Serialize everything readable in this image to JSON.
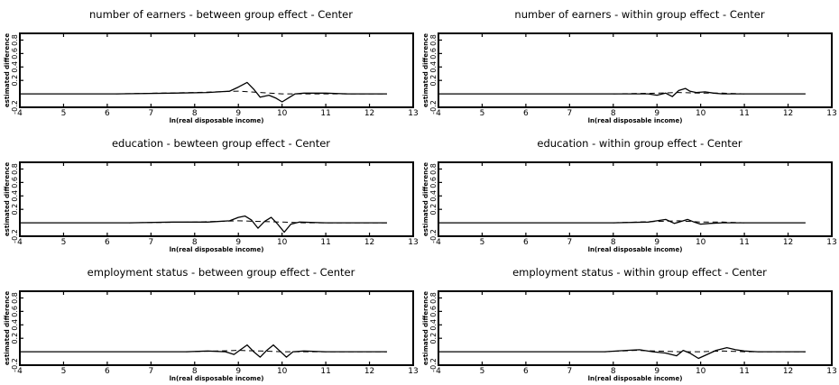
{
  "chart_data": [
    {
      "type": "line",
      "title": "number of earners - between group effect - Center",
      "xlabel": "ln(real disposable income)",
      "ylabel": "estimated difference",
      "xlim": [
        4,
        13
      ],
      "ylim": [
        -0.2,
        0.9
      ],
      "xticks": [
        "4",
        "5",
        "6",
        "7",
        "8",
        "9",
        "10",
        "11",
        "12",
        "13"
      ],
      "yticks": [
        "-0.2",
        "0.2",
        "0.4",
        "0.6",
        "0.8"
      ],
      "series": [
        {
          "style": "solid",
          "x": [
            4.0,
            6.2,
            7.5,
            8.3,
            8.8,
            9.0,
            9.2,
            9.35,
            9.5,
            9.7,
            9.85,
            10.0,
            10.15,
            10.3,
            10.5,
            11.0,
            11.5,
            12.0,
            12.4
          ],
          "y": [
            0.0,
            0.0,
            0.01,
            0.02,
            0.04,
            0.1,
            0.17,
            0.07,
            -0.05,
            -0.02,
            -0.06,
            -0.12,
            -0.06,
            0.0,
            0.01,
            0.01,
            0.0,
            0.0,
            0.0
          ]
        },
        {
          "style": "dashed",
          "x": [
            6.2,
            8.0,
            9.0,
            9.5,
            10.0,
            10.5,
            11.0,
            12.4
          ],
          "y": [
            0.0,
            0.02,
            0.04,
            0.02,
            0.0,
            0.0,
            0.0,
            0.0
          ]
        }
      ]
    },
    {
      "type": "line",
      "title": "number of earners - within group effect - Center",
      "xlabel": "ln(real disposable income)",
      "ylabel": "estimated difference",
      "xlim": [
        4,
        13
      ],
      "ylim": [
        -0.2,
        0.9
      ],
      "xticks": [
        "4",
        "5",
        "6",
        "7",
        "8",
        "9",
        "10",
        "11",
        "12",
        "13"
      ],
      "yticks": [
        "-0.2",
        "0.2",
        "0.4",
        "0.6",
        "0.8"
      ],
      "series": [
        {
          "style": "solid",
          "x": [
            4.0,
            8.0,
            8.8,
            9.0,
            9.2,
            9.35,
            9.5,
            9.65,
            9.75,
            9.9,
            10.1,
            10.3,
            10.5,
            11.0,
            12.4
          ],
          "y": [
            0.0,
            0.0,
            0.0,
            -0.02,
            0.01,
            -0.04,
            0.05,
            0.08,
            0.04,
            0.02,
            0.03,
            0.01,
            0.0,
            0.0,
            0.0
          ]
        },
        {
          "style": "dashed",
          "x": [
            8.0,
            9.0,
            9.5,
            10.0,
            10.5,
            11.0
          ],
          "y": [
            0.0,
            0.01,
            0.02,
            0.01,
            0.01,
            0.0
          ]
        }
      ]
    },
    {
      "type": "line",
      "title": "education - bewteen group effect - Center",
      "xlabel": "ln(real disposable income)",
      "ylabel": "estimated difference",
      "xlim": [
        4,
        13
      ],
      "ylim": [
        -0.2,
        0.9
      ],
      "xticks": [
        "4",
        "5",
        "6",
        "7",
        "8",
        "9",
        "10",
        "11",
        "12",
        "13"
      ],
      "yticks": [
        "-0.2",
        "0.2",
        "0.4",
        "0.6",
        "0.8"
      ],
      "series": [
        {
          "style": "solid",
          "x": [
            4.0,
            6.5,
            7.5,
            8.3,
            8.8,
            9.0,
            9.15,
            9.3,
            9.45,
            9.6,
            9.75,
            9.9,
            10.05,
            10.2,
            10.4,
            11.0,
            12.4
          ],
          "y": [
            0.0,
            0.0,
            0.01,
            0.01,
            0.03,
            0.08,
            0.1,
            0.04,
            -0.08,
            0.02,
            0.08,
            -0.02,
            -0.14,
            -0.02,
            0.01,
            0.0,
            0.0
          ]
        },
        {
          "style": "dashed",
          "x": [
            6.5,
            8.0,
            9.0,
            9.5,
            10.0,
            10.5,
            11.0,
            12.4
          ],
          "y": [
            0.0,
            0.01,
            0.03,
            0.02,
            0.01,
            0.0,
            0.0,
            0.0
          ]
        }
      ]
    },
    {
      "type": "line",
      "title": "education - within group effect - Center",
      "xlabel": "ln(real disposable income)",
      "ylabel": "estimated difference",
      "xlim": [
        4,
        13
      ],
      "ylim": [
        -0.2,
        0.9
      ],
      "xticks": [
        "4",
        "5",
        "6",
        "7",
        "8",
        "9",
        "10",
        "11",
        "12",
        "13"
      ],
      "yticks": [
        "-0.2",
        "0.2",
        "0.4",
        "0.6",
        "0.8"
      ],
      "series": [
        {
          "style": "solid",
          "x": [
            4.0,
            8.0,
            8.8,
            9.0,
            9.2,
            9.4,
            9.55,
            9.7,
            9.85,
            10.0,
            10.2,
            10.5,
            11.0,
            12.4
          ],
          "y": [
            0.0,
            0.0,
            0.01,
            0.03,
            0.05,
            -0.01,
            0.02,
            0.05,
            0.01,
            -0.02,
            -0.01,
            0.0,
            0.0,
            0.0
          ]
        },
        {
          "style": "dashed",
          "x": [
            8.0,
            9.0,
            9.5,
            10.0,
            10.5,
            11.0
          ],
          "y": [
            0.0,
            0.02,
            0.03,
            0.01,
            0.01,
            0.0
          ]
        }
      ]
    },
    {
      "type": "line",
      "title": "employment status - between group effect - Center",
      "xlabel": "ln(real disposable income)",
      "ylabel": "estimated difference",
      "xlim": [
        4,
        13
      ],
      "ylim": [
        -0.2,
        0.9
      ],
      "xticks": [
        "4",
        "5",
        "6",
        "7",
        "8",
        "9",
        "10",
        "11",
        "12",
        "13"
      ],
      "yticks": [
        "-0.2",
        "0.2",
        "0.4",
        "0.6",
        "0.8"
      ],
      "series": [
        {
          "style": "solid",
          "x": [
            4.0,
            7.8,
            8.3,
            8.7,
            8.9,
            9.05,
            9.2,
            9.35,
            9.5,
            9.65,
            9.8,
            9.95,
            10.1,
            10.25,
            10.5,
            11.0,
            12.4
          ],
          "y": [
            0.0,
            0.0,
            0.01,
            0.0,
            -0.04,
            0.03,
            0.1,
            0.0,
            -0.08,
            0.02,
            0.1,
            0.01,
            -0.08,
            0.0,
            0.01,
            0.0,
            0.0
          ]
        },
        {
          "style": "dashed",
          "x": [
            7.8,
            8.5,
            9.0,
            9.5,
            10.0,
            10.5,
            11.0,
            12.4
          ],
          "y": [
            0.0,
            0.01,
            0.02,
            0.01,
            0.0,
            0.0,
            0.0,
            0.0
          ]
        }
      ]
    },
    {
      "type": "line",
      "title": "employment status - within group effect - Center",
      "xlabel": "ln(real disposable income)",
      "ylabel": "estimated difference",
      "xlim": [
        4,
        13
      ],
      "ylim": [
        -0.2,
        0.9
      ],
      "xticks": [
        "4",
        "5",
        "6",
        "7",
        "8",
        "9",
        "10",
        "11",
        "12",
        "13"
      ],
      "yticks": [
        "-0.2",
        "0.2",
        "0.4",
        "0.6",
        "0.8"
      ],
      "series": [
        {
          "style": "solid",
          "x": [
            4.0,
            7.8,
            8.3,
            8.6,
            8.9,
            9.2,
            9.45,
            9.6,
            9.75,
            9.95,
            10.15,
            10.35,
            10.6,
            10.8,
            11.0,
            11.3,
            12.4
          ],
          "y": [
            0.0,
            0.0,
            0.02,
            0.03,
            0.0,
            -0.02,
            -0.06,
            0.02,
            -0.02,
            -0.1,
            -0.04,
            0.02,
            0.06,
            0.03,
            0.01,
            0.0,
            0.0
          ]
        },
        {
          "style": "dashed",
          "x": [
            7.8,
            8.5,
            9.0,
            9.5,
            10.0,
            10.5,
            11.0,
            12.4
          ],
          "y": [
            0.0,
            0.02,
            0.01,
            0.0,
            0.0,
            0.01,
            0.0,
            0.0
          ]
        }
      ]
    }
  ]
}
